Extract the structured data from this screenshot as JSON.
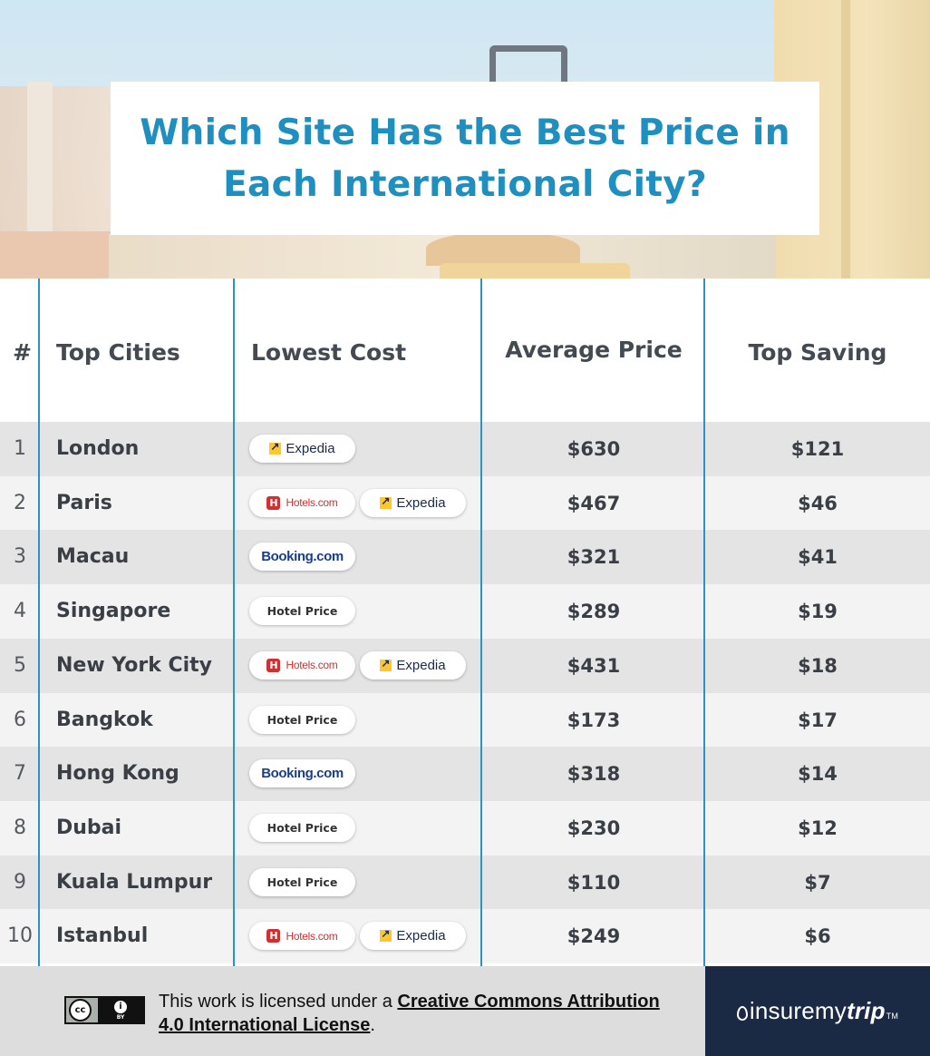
{
  "title": "Which Site Has the Best Price in Each International City?",
  "table": {
    "headers": {
      "rank": "#",
      "city": "Top Cities",
      "lowest_cost": "Lowest Cost",
      "average_price": "Average Price",
      "top_saving": "Top Saving"
    },
    "rows": [
      {
        "rank": "1",
        "city": "London",
        "sites": [
          "Expedia"
        ],
        "price": "$630",
        "saving": "$121"
      },
      {
        "rank": "2",
        "city": "Paris",
        "sites": [
          "Hotels.com",
          "Expedia"
        ],
        "price": "$467",
        "saving": "$46"
      },
      {
        "rank": "3",
        "city": "Macau",
        "sites": [
          "Booking.com"
        ],
        "price": "$321",
        "saving": "$41"
      },
      {
        "rank": "4",
        "city": "Singapore",
        "sites": [
          "Hotel Price"
        ],
        "price": "$289",
        "saving": "$19"
      },
      {
        "rank": "5",
        "city": "New York City",
        "sites": [
          "Hotels.com",
          "Expedia"
        ],
        "price": "$431",
        "saving": "$18"
      },
      {
        "rank": "6",
        "city": "Bangkok",
        "sites": [
          "Hotel Price"
        ],
        "price": "$173",
        "saving": "$17"
      },
      {
        "rank": "7",
        "city": "Hong Kong",
        "sites": [
          "Booking.com"
        ],
        "price": "$318",
        "saving": "$14"
      },
      {
        "rank": "8",
        "city": "Dubai",
        "sites": [
          "Hotel Price"
        ],
        "price": "$230",
        "saving": "$12"
      },
      {
        "rank": "9",
        "city": "Kuala Lumpur",
        "sites": [
          "Hotel Price"
        ],
        "price": "$110",
        "saving": "$7"
      },
      {
        "rank": "10",
        "city": "Istanbul",
        "sites": [
          "Hotels.com",
          "Expedia"
        ],
        "price": "$249",
        "saving": "$6"
      }
    ]
  },
  "footer": {
    "license_prefix": "This work is licensed under a ",
    "license_link": "Creative Commons Attribution 4.0 International License",
    "license_suffix": ".",
    "cc_badge": "cc",
    "cc_by": "BY",
    "brand": {
      "regular": "insuremy",
      "bold": "trip",
      "tm": "TM"
    }
  },
  "colors": {
    "title": "#1f8fc0",
    "divider": "#2e91c2",
    "row_odd": "#e5e4e5",
    "row_even": "#f4f3f4",
    "footer_dark": "#1b2a44"
  }
}
